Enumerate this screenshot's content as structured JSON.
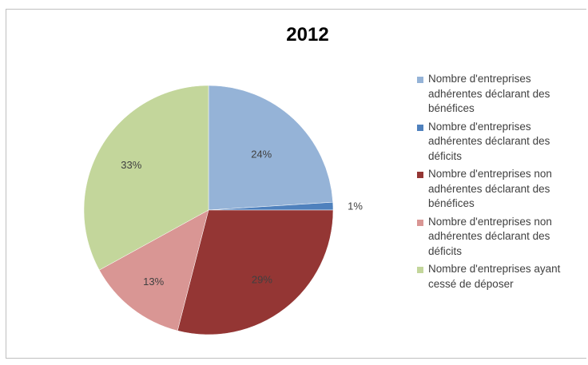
{
  "chart_data": {
    "type": "pie",
    "title": "2012",
    "slices": [
      {
        "label": "Nombre d'entreprises adhérentes déclarant des bénéfices",
        "value": 24,
        "display": "24%",
        "color": "#95b3d7"
      },
      {
        "label": "Nombre d'entreprises adhérentes déclarant des déficits",
        "value": 1,
        "display": "1%",
        "color": "#4f81bd"
      },
      {
        "label": "Nombre d'entreprises non adhérentes déclarant des bénéfices",
        "value": 29,
        "display": "29%",
        "color": "#943634"
      },
      {
        "label": "Nombre d'entreprises non adhérentes déclarant des déficits",
        "value": 13,
        "display": "13%",
        "color": "#d99694"
      },
      {
        "label": "Nombre d'entreprises ayant cessé de déposer",
        "value": 33,
        "display": "33%",
        "color": "#c3d69b"
      }
    ],
    "legend_position": "right",
    "start_angle": "top, clockwise"
  }
}
